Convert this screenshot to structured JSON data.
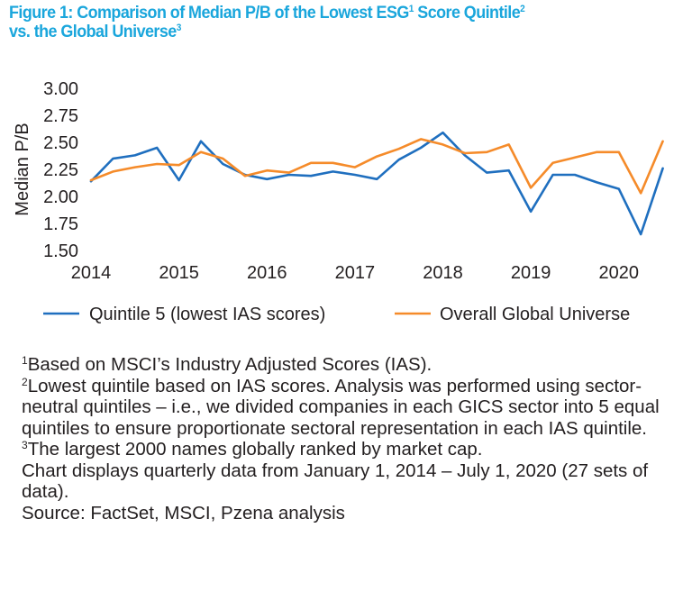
{
  "title": {
    "line1_a": "Figure 1: Comparison of Median P/B of the Lowest ESG",
    "line1_sup1": "1",
    "line1_b": " Score Quintile",
    "line1_sup2": "2",
    "line2_a": "vs. the Global Universe",
    "line2_sup": "3"
  },
  "chart_data": {
    "type": "line",
    "ylabel": "Median P/B",
    "ylim": [
      1.5,
      3.0
    ],
    "yticks": [
      "3.00",
      "2.75",
      "2.50",
      "2.25",
      "2.00",
      "1.75",
      "1.50"
    ],
    "ytick_values": [
      3.0,
      2.75,
      2.5,
      2.25,
      2.0,
      1.75,
      1.5
    ],
    "xlim": [
      2014,
      2020.75
    ],
    "xticks": [
      "2014",
      "2015",
      "2016",
      "2017",
      "2018",
      "2019",
      "2020"
    ],
    "xtick_values": [
      2014,
      2015,
      2016,
      2017,
      2018,
      2019,
      2020
    ],
    "grid": false,
    "legend_position": "bottom",
    "x": [
      2014.0,
      2014.25,
      2014.5,
      2014.75,
      2015.0,
      2015.25,
      2015.5,
      2015.75,
      2016.0,
      2016.25,
      2016.5,
      2016.75,
      2017.0,
      2017.25,
      2017.5,
      2017.75,
      2018.0,
      2018.25,
      2018.5,
      2018.75,
      2019.0,
      2019.25,
      2019.5,
      2019.75,
      2020.0,
      2020.25,
      2020.5
    ],
    "series": [
      {
        "name": "Quintile 5 (lowest IAS scores)",
        "color": "#1f6fbf",
        "values": [
          2.14,
          2.35,
          2.38,
          2.45,
          2.15,
          2.51,
          2.3,
          2.2,
          2.16,
          2.2,
          2.19,
          2.23,
          2.2,
          2.16,
          2.34,
          2.45,
          2.59,
          2.38,
          2.22,
          2.24,
          1.86,
          2.2,
          2.2,
          2.13,
          2.07,
          1.65,
          2.26
        ]
      },
      {
        "name": "Overall Global Universe",
        "color": "#f58b2a",
        "values": [
          2.15,
          2.23,
          2.27,
          2.3,
          2.29,
          2.41,
          2.35,
          2.19,
          2.24,
          2.22,
          2.31,
          2.31,
          2.27,
          2.37,
          2.44,
          2.53,
          2.48,
          2.4,
          2.41,
          2.48,
          2.08,
          2.31,
          2.36,
          2.41,
          2.41,
          2.03,
          2.51
        ]
      }
    ]
  },
  "notes": {
    "n1_sup": "1",
    "n1": "Based on MSCI’s Industry Adjusted Scores (IAS).",
    "n2_sup": "2",
    "n2": "Lowest quintile based on IAS scores. Analysis was performed using sector-neutral quintiles – i.e., we divided companies in each GICS sector into 5 equal quintiles to ensure proportionate sectoral representation in each IAS quintile.",
    "n3_sup": "3",
    "n3": "The largest 2000 names globally ranked by market cap.",
    "n4": "Chart displays quarterly data from January 1, 2014 – July 1, 2020 (27 sets of data).",
    "n5": "Source: FactSet, MSCI, Pzena analysis"
  }
}
